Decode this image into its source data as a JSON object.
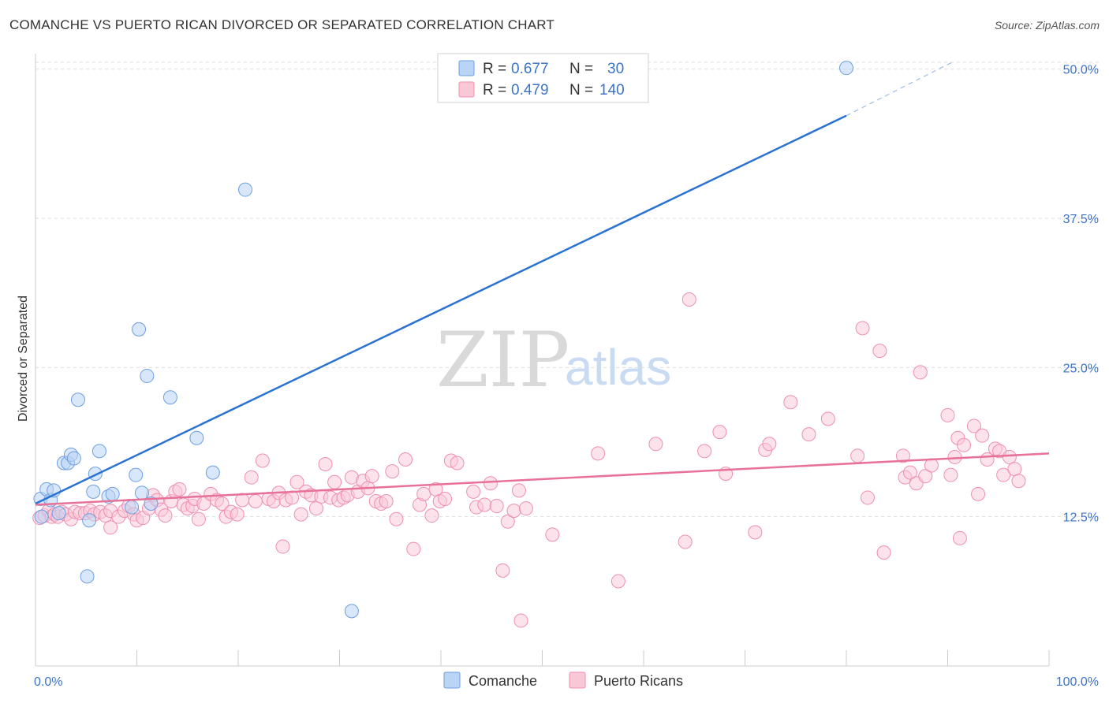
{
  "title": "COMANCHE VS PUERTO RICAN DIVORCED OR SEPARATED CORRELATION CHART",
  "source": "Source: ZipAtlas.com",
  "watermark": {
    "zip": "ZIP",
    "atlas": "atlas"
  },
  "legend": {
    "rows": [
      {
        "r_label": "R =",
        "r_value": "0.677",
        "n_label": "N =",
        "n_value": "30"
      },
      {
        "r_label": "R =",
        "r_value": "0.479",
        "n_label": "N =",
        "n_value": "140"
      }
    ]
  },
  "bottom_legend": {
    "series1": "Comanche",
    "series2": "Puerto Ricans"
  },
  "colors": {
    "comanche_fill": "#b9d4f5",
    "comanche_stroke": "#6d9fe0",
    "comanche_line": "#2b73d2",
    "pr_fill": "#f9c8d7",
    "pr_stroke": "#ee8fae",
    "pr_line": "#e8719a",
    "axis_label": "#3b73c8",
    "grid": "#dddddd"
  },
  "chart_data": {
    "type": "scatter",
    "title": "COMANCHE VS PUERTO RICAN DIVORCED OR SEPARATED CORRELATION CHART",
    "xlabel": "",
    "ylabel": "Divorced or Separated",
    "xlim": [
      0,
      100
    ],
    "ylim": [
      0,
      51.3
    ],
    "x_tick_labels": [
      "0.0%",
      "100.0%"
    ],
    "y_ticks": [
      12.5,
      25.0,
      37.5,
      50.0
    ],
    "y_tick_labels": [
      "12.5%",
      "25.0%",
      "37.5%",
      "50.0%"
    ],
    "grid": true,
    "legend_position": "top-center",
    "series": [
      {
        "name": "Comanche",
        "r": 0.677,
        "n": 30,
        "trend": {
          "x": [
            0,
            80
          ],
          "y": [
            13.6,
            46.1
          ],
          "dashed_to": [
            90.5,
            50.6
          ]
        },
        "points": [
          [
            0.5,
            14.0
          ],
          [
            0.6,
            12.5
          ],
          [
            1.1,
            14.8
          ],
          [
            1.5,
            13.9
          ],
          [
            1.8,
            14.7
          ],
          [
            2.3,
            12.8
          ],
          [
            2.8,
            17.0
          ],
          [
            3.2,
            17.0
          ],
          [
            3.5,
            17.7
          ],
          [
            3.8,
            17.4
          ],
          [
            4.2,
            22.3
          ],
          [
            5.1,
            7.5
          ],
          [
            5.3,
            12.2
          ],
          [
            5.7,
            14.6
          ],
          [
            5.9,
            16.1
          ],
          [
            6.3,
            18.0
          ],
          [
            7.2,
            14.2
          ],
          [
            7.6,
            14.4
          ],
          [
            9.5,
            13.3
          ],
          [
            9.9,
            16.0
          ],
          [
            10.2,
            28.2
          ],
          [
            10.5,
            14.5
          ],
          [
            11.0,
            24.3
          ],
          [
            11.4,
            13.6
          ],
          [
            13.3,
            22.5
          ],
          [
            15.9,
            19.1
          ],
          [
            17.5,
            16.2
          ],
          [
            20.7,
            39.9
          ],
          [
            31.2,
            4.6
          ],
          [
            80.0,
            50.1
          ]
        ]
      },
      {
        "name": "Puerto Ricans",
        "r": 0.479,
        "n": 140,
        "trend": {
          "x": [
            0,
            100
          ],
          "y": [
            13.5,
            17.8
          ]
        },
        "points": [
          [
            0.4,
            12.4
          ],
          [
            0.9,
            12.6
          ],
          [
            1.3,
            13.0
          ],
          [
            1.6,
            12.5
          ],
          [
            1.9,
            12.7
          ],
          [
            2.2,
            12.5
          ],
          [
            2.6,
            12.9
          ],
          [
            3.0,
            12.7
          ],
          [
            3.5,
            12.3
          ],
          [
            3.9,
            12.9
          ],
          [
            4.4,
            12.8
          ],
          [
            4.9,
            12.8
          ],
          [
            5.4,
            13.0
          ],
          [
            5.8,
            12.7
          ],
          [
            6.4,
            12.9
          ],
          [
            6.9,
            12.6
          ],
          [
            7.4,
            13.0
          ],
          [
            7.4,
            11.6
          ],
          [
            8.2,
            12.5
          ],
          [
            8.8,
            13.0
          ],
          [
            9.2,
            13.4
          ],
          [
            9.7,
            12.7
          ],
          [
            10.0,
            12.2
          ],
          [
            10.6,
            12.4
          ],
          [
            11.2,
            13.2
          ],
          [
            11.6,
            14.3
          ],
          [
            12.0,
            13.9
          ],
          [
            12.4,
            13.1
          ],
          [
            12.8,
            12.6
          ],
          [
            13.4,
            13.8
          ],
          [
            13.8,
            14.6
          ],
          [
            14.2,
            14.8
          ],
          [
            14.6,
            13.5
          ],
          [
            15.0,
            13.2
          ],
          [
            15.5,
            13.4
          ],
          [
            15.7,
            14.0
          ],
          [
            16.1,
            12.3
          ],
          [
            16.6,
            13.6
          ],
          [
            17.3,
            14.4
          ],
          [
            17.9,
            13.9
          ],
          [
            18.4,
            13.6
          ],
          [
            18.8,
            12.5
          ],
          [
            19.3,
            12.9
          ],
          [
            19.9,
            12.7
          ],
          [
            20.4,
            13.9
          ],
          [
            21.3,
            15.8
          ],
          [
            21.7,
            13.8
          ],
          [
            22.4,
            17.2
          ],
          [
            23.0,
            14.0
          ],
          [
            23.5,
            13.8
          ],
          [
            24.0,
            14.5
          ],
          [
            24.4,
            10.0
          ],
          [
            24.7,
            13.9
          ],
          [
            25.3,
            14.1
          ],
          [
            25.8,
            15.4
          ],
          [
            26.2,
            12.7
          ],
          [
            26.7,
            14.6
          ],
          [
            27.2,
            14.3
          ],
          [
            27.7,
            13.2
          ],
          [
            28.2,
            14.2
          ],
          [
            28.6,
            16.9
          ],
          [
            29.1,
            14.1
          ],
          [
            29.5,
            15.4
          ],
          [
            29.9,
            13.9
          ],
          [
            30.4,
            14.1
          ],
          [
            30.8,
            14.3
          ],
          [
            31.2,
            15.8
          ],
          [
            31.8,
            14.6
          ],
          [
            32.3,
            15.5
          ],
          [
            32.8,
            14.9
          ],
          [
            33.2,
            15.9
          ],
          [
            33.6,
            13.8
          ],
          [
            34.1,
            13.6
          ],
          [
            34.6,
            13.8
          ],
          [
            35.2,
            16.3
          ],
          [
            35.6,
            12.3
          ],
          [
            36.5,
            17.3
          ],
          [
            37.3,
            9.8
          ],
          [
            37.9,
            13.5
          ],
          [
            38.3,
            14.4
          ],
          [
            39.1,
            12.6
          ],
          [
            39.5,
            14.8
          ],
          [
            39.9,
            13.8
          ],
          [
            40.4,
            14.0
          ],
          [
            41.0,
            17.2
          ],
          [
            41.6,
            17.0
          ],
          [
            43.2,
            14.6
          ],
          [
            43.5,
            13.3
          ],
          [
            44.3,
            13.5
          ],
          [
            44.9,
            15.3
          ],
          [
            45.5,
            13.4
          ],
          [
            46.1,
            8.0
          ],
          [
            46.6,
            12.1
          ],
          [
            47.2,
            13.0
          ],
          [
            47.7,
            14.7
          ],
          [
            47.9,
            3.8
          ],
          [
            48.4,
            13.2
          ],
          [
            51.0,
            11.0
          ],
          [
            55.5,
            17.8
          ],
          [
            57.5,
            7.1
          ],
          [
            61.2,
            18.6
          ],
          [
            64.1,
            10.4
          ],
          [
            64.5,
            30.7
          ],
          [
            66.0,
            18.0
          ],
          [
            67.5,
            19.6
          ],
          [
            68.1,
            16.1
          ],
          [
            71.0,
            11.2
          ],
          [
            72.0,
            18.1
          ],
          [
            72.4,
            18.6
          ],
          [
            74.5,
            22.1
          ],
          [
            76.3,
            19.4
          ],
          [
            78.2,
            20.7
          ],
          [
            81.1,
            17.6
          ],
          [
            81.6,
            28.3
          ],
          [
            82.1,
            14.1
          ],
          [
            83.3,
            26.4
          ],
          [
            83.7,
            9.5
          ],
          [
            85.6,
            17.6
          ],
          [
            85.8,
            15.8
          ],
          [
            86.3,
            16.2
          ],
          [
            86.9,
            15.3
          ],
          [
            87.3,
            24.6
          ],
          [
            87.8,
            15.9
          ],
          [
            88.4,
            16.8
          ],
          [
            90.0,
            21.0
          ],
          [
            90.3,
            16.0
          ],
          [
            90.7,
            17.5
          ],
          [
            91.0,
            19.1
          ],
          [
            91.2,
            10.7
          ],
          [
            91.6,
            18.5
          ],
          [
            92.6,
            20.1
          ],
          [
            93.0,
            14.4
          ],
          [
            93.4,
            19.3
          ],
          [
            93.9,
            17.3
          ],
          [
            94.7,
            18.2
          ],
          [
            95.1,
            18.0
          ],
          [
            95.5,
            16.0
          ],
          [
            96.1,
            17.5
          ],
          [
            96.6,
            16.5
          ],
          [
            97.0,
            15.5
          ]
        ]
      }
    ]
  }
}
